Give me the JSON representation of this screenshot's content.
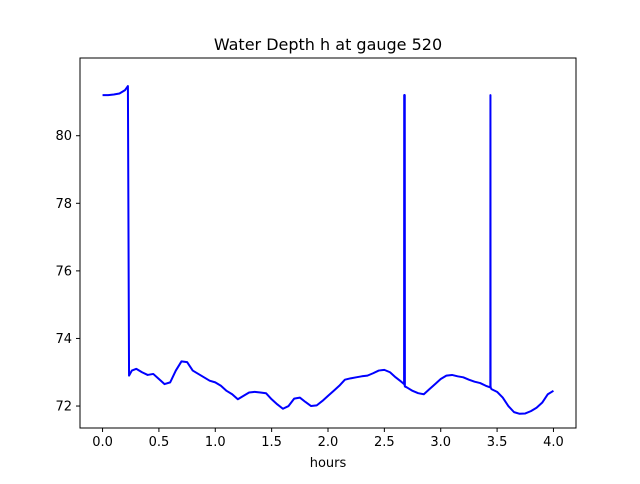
{
  "chart_data": {
    "type": "line",
    "title": "Water Depth h at gauge 520",
    "xlabel": "hours",
    "ylabel": "",
    "xlim": [
      -0.2,
      4.2
    ],
    "ylim": [
      71.35,
      82.3
    ],
    "xticks": [
      0.0,
      0.5,
      1.0,
      1.5,
      2.0,
      2.5,
      3.0,
      3.5,
      4.0
    ],
    "xtick_labels": [
      "0.0",
      "0.5",
      "1.0",
      "1.5",
      "2.0",
      "2.5",
      "3.0",
      "3.5",
      "4.0"
    ],
    "yticks": [
      72,
      74,
      76,
      78,
      80
    ],
    "ytick_labels": [
      "72",
      "74",
      "76",
      "78",
      "80"
    ],
    "grid": false,
    "line_color": "#0000ff",
    "series": [
      {
        "name": "",
        "x": [
          0.0,
          0.05,
          0.1,
          0.15,
          0.2,
          0.225,
          0.235,
          0.235,
          0.26,
          0.3,
          0.35,
          0.4,
          0.45,
          0.5,
          0.55,
          0.6,
          0.65,
          0.7,
          0.75,
          0.8,
          0.85,
          0.9,
          0.95,
          1.0,
          1.05,
          1.1,
          1.15,
          1.2,
          1.25,
          1.3,
          1.35,
          1.4,
          1.45,
          1.5,
          1.55,
          1.6,
          1.65,
          1.7,
          1.75,
          1.8,
          1.85,
          1.9,
          1.95,
          2.0,
          2.05,
          2.1,
          2.15,
          2.2,
          2.25,
          2.3,
          2.35,
          2.4,
          2.45,
          2.5,
          2.55,
          2.6,
          2.65,
          2.675,
          2.676,
          2.677,
          2.678,
          2.68,
          2.681,
          2.682,
          2.7,
          2.75,
          2.8,
          2.85,
          2.9,
          2.95,
          3.0,
          3.05,
          3.1,
          3.15,
          3.2,
          3.25,
          3.3,
          3.35,
          3.4,
          3.44,
          3.441,
          3.442,
          3.443,
          3.45,
          3.5,
          3.55,
          3.6,
          3.65,
          3.7,
          3.75,
          3.8,
          3.85,
          3.9,
          3.95,
          4.0
        ],
        "y": [
          81.2,
          81.2,
          81.22,
          81.25,
          81.35,
          81.47,
          72.95,
          72.9,
          73.05,
          73.1,
          73.0,
          72.92,
          72.95,
          72.8,
          72.65,
          72.7,
          73.05,
          73.32,
          73.3,
          73.05,
          72.95,
          72.85,
          72.75,
          72.7,
          72.6,
          72.45,
          72.35,
          72.2,
          72.3,
          72.4,
          72.42,
          72.4,
          72.38,
          72.2,
          72.05,
          71.92,
          72.0,
          72.22,
          72.25,
          72.12,
          72.0,
          72.02,
          72.15,
          72.3,
          72.45,
          72.6,
          72.78,
          72.82,
          72.85,
          72.88,
          72.9,
          72.97,
          73.05,
          73.07,
          73.0,
          72.85,
          72.72,
          72.65,
          81.2,
          72.7,
          81.2,
          72.6,
          81.2,
          72.58,
          72.55,
          72.45,
          72.38,
          72.35,
          72.5,
          72.65,
          72.8,
          72.9,
          72.92,
          72.88,
          72.85,
          72.78,
          72.72,
          72.68,
          72.6,
          72.55,
          81.2,
          72.6,
          72.55,
          72.5,
          72.42,
          72.25,
          72.0,
          71.82,
          71.77,
          71.78,
          71.85,
          71.95,
          72.1,
          72.35,
          72.45
        ]
      }
    ]
  }
}
